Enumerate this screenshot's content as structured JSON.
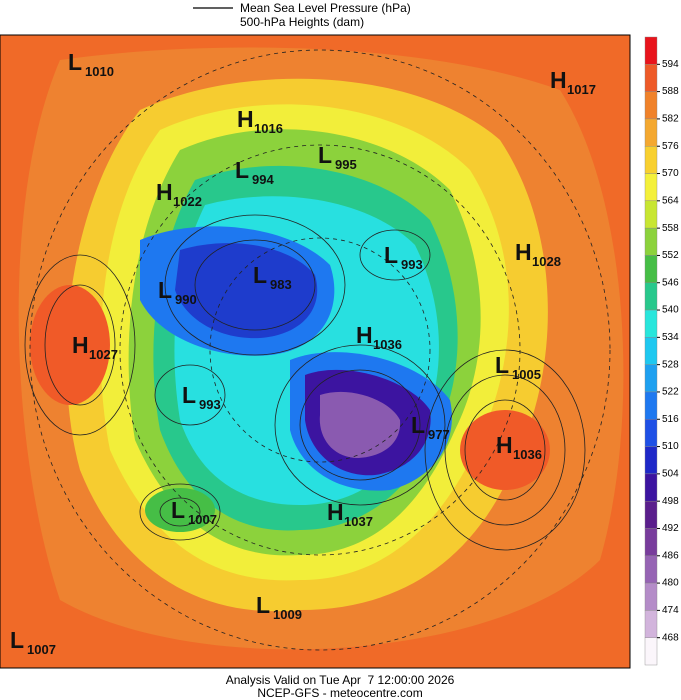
{
  "header": {
    "legend": [
      "Mean Sea Level Pressure (hPa)",
      "500-hPa Heights (dam)"
    ]
  },
  "centers": [
    {
      "type": "L",
      "value": 1010
    },
    {
      "type": "H",
      "value": 1017
    },
    {
      "type": "H",
      "value": 1016
    },
    {
      "type": "L",
      "value": 995
    },
    {
      "type": "L",
      "value": 994
    },
    {
      "type": "H",
      "value": 1022
    },
    {
      "type": "L",
      "value": 993
    },
    {
      "type": "H",
      "value": 1028
    },
    {
      "type": "L",
      "value": 983
    },
    {
      "type": "L",
      "value": 990
    },
    {
      "type": "H",
      "value": 1036
    },
    {
      "type": "H",
      "value": 1027
    },
    {
      "type": "L",
      "value": 1005
    },
    {
      "type": "L",
      "value": 993
    },
    {
      "type": "L",
      "value": 977
    },
    {
      "type": "H",
      "value": 1036
    },
    {
      "type": "L",
      "value": 1007
    },
    {
      "type": "H",
      "value": 1037
    },
    {
      "type": "L",
      "value": 1009
    },
    {
      "type": "L",
      "value": 1007
    }
  ],
  "colorbar": {
    "ticks": [
      594,
      588,
      582,
      576,
      570,
      564,
      558,
      552,
      546,
      540,
      534,
      528,
      522,
      516,
      510,
      504,
      498,
      492,
      486,
      480,
      474,
      468
    ],
    "colors": [
      "#e8141c",
      "#ee5a28",
      "#f0822a",
      "#f4a830",
      "#f8d030",
      "#f4f03a",
      "#c8e632",
      "#8cd23c",
      "#46be46",
      "#28c88c",
      "#28e6dc",
      "#1ec8f0",
      "#1ea0f0",
      "#1e78f0",
      "#1e50e6",
      "#1e28c8",
      "#3c14a0",
      "#5a1e8c",
      "#783c9c",
      "#9664b4",
      "#b48cc8",
      "#d2b4dc",
      "#fbf6fb"
    ]
  },
  "footer": [
    "Analysis Valid on Tue Apr  7 12:00:00 2026",
    "NCEP-GFS - meteocentre.com"
  ]
}
